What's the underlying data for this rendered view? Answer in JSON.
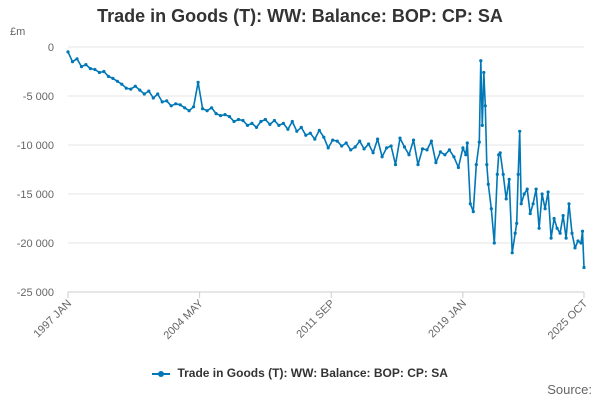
{
  "chart_data": {
    "type": "line",
    "title": "Trade in Goods (T): WW: Balance: BOP: CP: SA",
    "ylabel": "£m",
    "xlabel": "",
    "ylim": [
      -25000,
      0
    ],
    "yticks": [
      0,
      -5000,
      -10000,
      -15000,
      -20000,
      -25000
    ],
    "ytick_labels": [
      "0",
      "-5 000",
      "-10 000",
      "-15 000",
      "-20 000",
      "-25 000"
    ],
    "xticks": [
      "1997-01",
      "2004-05",
      "2011-09",
      "2019-01",
      "2025-10"
    ],
    "xtick_labels": [
      "1997 JAN",
      "2004 MAY",
      "2011 SEP",
      "2019 JAN",
      "2025 OCT"
    ],
    "grid": true,
    "legend_position": "bottom",
    "series": [
      {
        "name": "Trade in Goods (T): WW: Balance: BOP: CP: SA",
        "color": "#0077b6",
        "x": [
          "1997-01",
          "1997-04",
          "1997-07",
          "1997-10",
          "1998-01",
          "1998-04",
          "1998-07",
          "1998-10",
          "1999-01",
          "1999-04",
          "1999-07",
          "1999-10",
          "2000-01",
          "2000-04",
          "2000-07",
          "2000-10",
          "2001-01",
          "2001-04",
          "2001-07",
          "2001-10",
          "2002-01",
          "2002-04",
          "2002-07",
          "2002-10",
          "2003-01",
          "2003-04",
          "2003-07",
          "2003-10",
          "2004-01",
          "2004-04",
          "2004-07",
          "2004-10",
          "2005-01",
          "2005-04",
          "2005-07",
          "2005-10",
          "2006-01",
          "2006-04",
          "2006-07",
          "2006-10",
          "2007-01",
          "2007-04",
          "2007-07",
          "2007-10",
          "2008-01",
          "2008-04",
          "2008-07",
          "2008-10",
          "2009-01",
          "2009-04",
          "2009-07",
          "2009-10",
          "2010-01",
          "2010-04",
          "2010-07",
          "2010-10",
          "2011-01",
          "2011-04",
          "2011-07",
          "2011-10",
          "2012-01",
          "2012-04",
          "2012-07",
          "2012-10",
          "2013-01",
          "2013-04",
          "2013-07",
          "2013-10",
          "2014-01",
          "2014-04",
          "2014-07",
          "2014-10",
          "2015-01",
          "2015-04",
          "2015-07",
          "2015-10",
          "2016-01",
          "2016-04",
          "2016-07",
          "2016-10",
          "2017-01",
          "2017-04",
          "2017-07",
          "2017-10",
          "2018-01",
          "2018-04",
          "2018-07",
          "2018-10",
          "2019-01",
          "2019-03",
          "2019-04",
          "2019-06",
          "2019-08",
          "2019-10",
          "2019-12",
          "2020-01",
          "2020-02",
          "2020-03",
          "2020-04",
          "2020-05",
          "2020-06",
          "2020-08",
          "2020-10",
          "2020-12",
          "2021-01",
          "2021-02",
          "2021-04",
          "2021-06",
          "2021-08",
          "2021-10",
          "2021-12",
          "2022-01",
          "2022-02",
          "2022-03",
          "2022-04",
          "2022-06",
          "2022-08",
          "2022-10",
          "2022-12",
          "2023-02",
          "2023-04",
          "2023-06",
          "2023-08",
          "2023-10",
          "2023-12",
          "2024-02",
          "2024-04",
          "2024-06",
          "2024-08",
          "2024-10",
          "2024-12",
          "2025-02",
          "2025-04",
          "2025-06",
          "2025-08",
          "2025-09",
          "2025-10"
        ],
        "values": [
          -500,
          -1500,
          -1200,
          -2000,
          -1800,
          -2200,
          -2300,
          -2600,
          -2500,
          -3000,
          -3200,
          -3500,
          -3800,
          -4200,
          -4300,
          -4000,
          -4400,
          -4800,
          -4500,
          -5200,
          -4800,
          -5600,
          -5500,
          -6000,
          -5800,
          -5900,
          -6200,
          -6500,
          -6100,
          -3600,
          -6300,
          -6500,
          -6200,
          -6800,
          -7000,
          -6900,
          -7100,
          -7600,
          -7400,
          -7500,
          -8000,
          -7800,
          -8200,
          -7600,
          -7400,
          -7900,
          -7500,
          -8000,
          -7800,
          -8400,
          -7600,
          -8600,
          -8200,
          -9000,
          -8800,
          -9400,
          -8500,
          -9200,
          -10300,
          -9500,
          -9600,
          -10100,
          -9800,
          -10500,
          -10200,
          -9600,
          -10400,
          -9900,
          -10800,
          -9400,
          -11200,
          -10300,
          -10100,
          -12000,
          -9300,
          -10200,
          -11000,
          -9500,
          -12000,
          -10400,
          -10500,
          -9600,
          -11800,
          -10700,
          -11000,
          -10500,
          -11200,
          -12300,
          -10300,
          -11000,
          -9800,
          -16000,
          -16800,
          -12000,
          -9700,
          -1400,
          -8000,
          -2600,
          -6000,
          -12000,
          -14000,
          -16500,
          -20000,
          -13000,
          -11000,
          -10800,
          -13000,
          -15500,
          -13500,
          -21000,
          -19000,
          -18000,
          -13000,
          -8600,
          -16000,
          -15000,
          -14500,
          -17000,
          -16000,
          -14500,
          -18500,
          -15000,
          -16500,
          -14800,
          -19500,
          -17500,
          -18500,
          -19000,
          -17200,
          -19500,
          -16000,
          -19000,
          -20500,
          -19800,
          -20000,
          -18800,
          -22500
        ]
      }
    ]
  },
  "source_label": "Source:"
}
